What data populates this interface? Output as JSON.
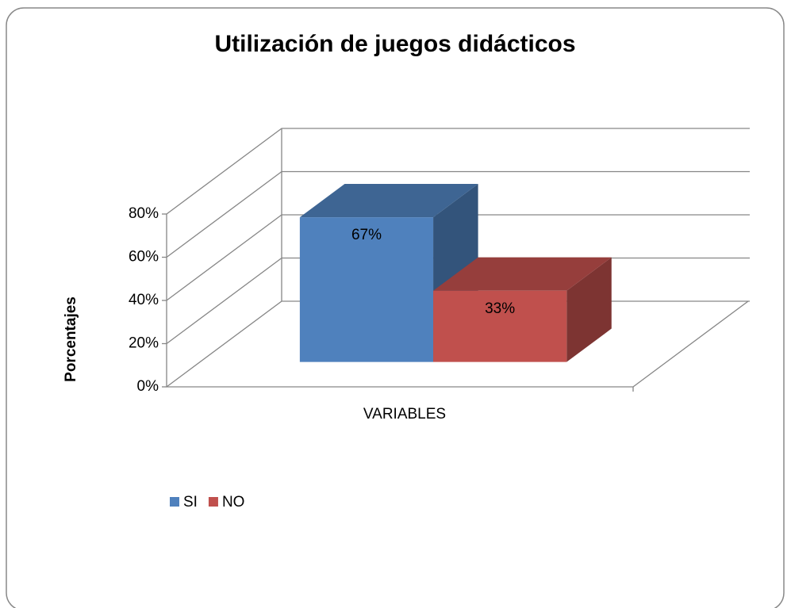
{
  "chart_data": {
    "type": "bar3d",
    "title": "Utilización de juegos didácticos",
    "y_label": "Porcentajes",
    "categories": [
      "VARIABLES"
    ],
    "series": [
      {
        "name": "SI",
        "color": "#4f81bd",
        "values": [
          67
        ],
        "value_labels": [
          "67%"
        ]
      },
      {
        "name": "NO",
        "color": "#c0504d",
        "values": [
          33
        ],
        "value_labels": [
          "33%"
        ]
      }
    ],
    "ylim": [
      0,
      80
    ],
    "yticks": [
      {
        "value": 0,
        "label": "0%"
      },
      {
        "value": 20,
        "label": "20%"
      },
      {
        "value": 40,
        "label": "40%"
      },
      {
        "value": 60,
        "label": "60%"
      },
      {
        "value": 80,
        "label": "80%"
      }
    ],
    "grid": true,
    "legend": "bottom-left"
  }
}
